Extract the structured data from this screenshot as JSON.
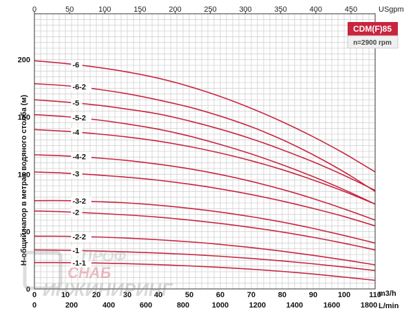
{
  "chart_data": {
    "type": "line",
    "badge": "CDM(F)85",
    "speed": "n=2900 rpm",
    "ylabel": "Н-общий напор в метрах водяного столба (м)",
    "x_unit_m3h": "m3/h",
    "x_unit_lmin": "L/min",
    "x_unit_usgpm": "USgpm",
    "xlim": [
      0,
      110
    ],
    "ylim": [
      0,
      240
    ],
    "y_ticks": [
      0,
      50,
      100,
      150,
      200
    ],
    "x_ticks_m3h": [
      0,
      10,
      20,
      30,
      40,
      50,
      60,
      70,
      80,
      90,
      100,
      110
    ],
    "x_ticks_lmin": [
      0,
      200,
      400,
      600,
      800,
      1000,
      1200,
      1400,
      1600,
      1800
    ],
    "x_ticks_usgpm": [
      0,
      50,
      100,
      150,
      200,
      250,
      300,
      350,
      400,
      450
    ],
    "series": [
      {
        "name": "-6",
        "x": [
          0,
          10,
          20,
          30,
          40,
          50,
          60,
          70,
          80,
          90,
          100,
          110
        ],
        "y": [
          199,
          196.6,
          193.4,
          189.2,
          183.8,
          176.6,
          167.8,
          157.5,
          145.8,
          132.7,
          118.2,
          102
        ]
      },
      {
        "name": "-6-2",
        "x": [
          0,
          10,
          20,
          30,
          40,
          50,
          60,
          70,
          80,
          90,
          100,
          110
        ],
        "y": [
          179,
          177.3,
          174.3,
          170.2,
          164.8,
          158.6,
          150.7,
          141.4,
          130.2,
          117,
          102,
          85
        ]
      },
      {
        "name": "-5",
        "x": [
          0,
          10,
          20,
          30,
          40,
          50,
          60,
          70,
          80,
          90,
          100,
          110
        ],
        "y": [
          165,
          163,
          160.4,
          156.8,
          152.6,
          146.5,
          139.3,
          131,
          121.4,
          110.8,
          99,
          86
        ]
      },
      {
        "name": "-5-2",
        "x": [
          0,
          10,
          20,
          30,
          40,
          50,
          60,
          70,
          80,
          90,
          100,
          110
        ],
        "y": [
          152,
          150.3,
          147.6,
          143.8,
          139.3,
          133.3,
          126,
          117.7,
          108.3,
          97.9,
          86.5,
          74
        ]
      },
      {
        "name": "-4",
        "x": [
          0,
          10,
          20,
          30,
          40,
          50,
          60,
          70,
          80,
          90,
          100,
          110
        ],
        "y": [
          139,
          137.5,
          135.3,
          132.5,
          128.9,
          124.2,
          118.5,
          111.8,
          104,
          95,
          85,
          74
        ]
      },
      {
        "name": "-4-2",
        "x": [
          0,
          10,
          20,
          30,
          40,
          50,
          60,
          70,
          80,
          90,
          100,
          110
        ],
        "y": [
          117,
          116,
          114.3,
          112,
          108.8,
          104.8,
          99.8,
          93.8,
          86.8,
          78.8,
          69.8,
          60
        ]
      },
      {
        "name": "-3",
        "x": [
          0,
          10,
          20,
          30,
          40,
          50,
          60,
          70,
          80,
          90,
          100,
          110
        ],
        "y": [
          102,
          101,
          99.4,
          97.4,
          94.8,
          91.4,
          87.2,
          82.3,
          76.6,
          70.2,
          63.1,
          55
        ]
      },
      {
        "name": "-3-2",
        "x": [
          0,
          10,
          20,
          30,
          40,
          50,
          60,
          70,
          80,
          90,
          100,
          110
        ],
        "y": [
          77,
          77,
          76.2,
          75,
          73,
          70.3,
          67,
          63,
          58.3,
          52.8,
          46.6,
          40
        ]
      },
      {
        "name": "-2",
        "x": [
          0,
          10,
          20,
          30,
          40,
          50,
          60,
          70,
          80,
          90,
          100,
          110
        ],
        "y": [
          68,
          67.2,
          66,
          64.5,
          62.6,
          60.1,
          57.1,
          53.6,
          49.6,
          45,
          39.8,
          34
        ]
      },
      {
        "name": "-2-2",
        "x": [
          0,
          10,
          20,
          30,
          40,
          50,
          60,
          70,
          80,
          90,
          100,
          110
        ],
        "y": [
          46,
          45.9,
          45.3,
          44.3,
          42.9,
          41.1,
          38.8,
          36.1,
          32.9,
          29.3,
          25.3,
          21
        ]
      },
      {
        "name": "-1",
        "x": [
          0,
          10,
          20,
          30,
          40,
          50,
          60,
          70,
          80,
          90,
          100,
          110
        ],
        "y": [
          34,
          33.7,
          33.1,
          32.3,
          31.3,
          30.1,
          28.5,
          26.6,
          24.4,
          21.9,
          19.1,
          16
        ]
      },
      {
        "name": "-1-1",
        "x": [
          0,
          10,
          20,
          30,
          40,
          50,
          60,
          70,
          80,
          90,
          100,
          110
        ],
        "y": [
          23,
          22.9,
          22.6,
          22,
          21.2,
          20.1,
          18.8,
          17.2,
          15.3,
          13,
          10.3,
          7.5
        ]
      }
    ],
    "colors": {
      "curve": "#c8253f",
      "grid": "#d0d0d0",
      "badge": "#c8253f",
      "axis": "#333333"
    }
  },
  "watermark": {
    "line1": "ПРОФ",
    "line2": "СНАБ",
    "line3": "ИНЖИНИРИНГ"
  }
}
